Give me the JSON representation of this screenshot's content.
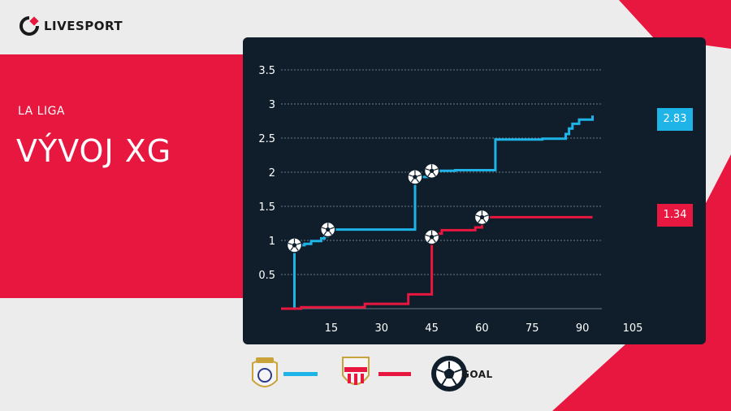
{
  "brand": {
    "name": "LIVESPORT"
  },
  "header": {
    "league": "LA LIGA",
    "title": "VÝVOJ XG"
  },
  "colors": {
    "home": "#1fb4e8",
    "away": "#e8173f",
    "panel": "#0f1e2a",
    "accent": "#e8173f"
  },
  "legend": {
    "goal_label": "GOAL",
    "home_icon": "real-madrid-crest-icon",
    "away_icon": "almeria-crest-icon",
    "goal_icon": "football-icon"
  },
  "chart_data": {
    "type": "line",
    "x_ticks": [
      "15",
      "30",
      "45",
      "60",
      "75",
      "90",
      "105"
    ],
    "y_ticks": [
      "0.5",
      "1",
      "1.5",
      "2",
      "2.5",
      "3",
      "3.5"
    ],
    "xlim": [
      0,
      105
    ],
    "ylim": [
      0,
      3.5
    ],
    "grid": true,
    "series": [
      {
        "team": "home",
        "final_label": "2.83",
        "points": [
          [
            0,
            0
          ],
          [
            4,
            0
          ],
          [
            4,
            0.93
          ],
          [
            7,
            0.93
          ],
          [
            7,
            0.95
          ],
          [
            9,
            0.95
          ],
          [
            9,
            0.99
          ],
          [
            12,
            0.99
          ],
          [
            12,
            1.03
          ],
          [
            13,
            1.03
          ],
          [
            13,
            1.06
          ],
          [
            14,
            1.06
          ],
          [
            14,
            1.16
          ],
          [
            40,
            1.16
          ],
          [
            40,
            1.93
          ],
          [
            45,
            1.93
          ],
          [
            45,
            2.02
          ],
          [
            52,
            2.02
          ],
          [
            52,
            2.03
          ],
          [
            64,
            2.03
          ],
          [
            64,
            2.48
          ],
          [
            78,
            2.48
          ],
          [
            78,
            2.49
          ],
          [
            85,
            2.49
          ],
          [
            85,
            2.56
          ],
          [
            86,
            2.56
          ],
          [
            86,
            2.64
          ],
          [
            87,
            2.64
          ],
          [
            87,
            2.71
          ],
          [
            89,
            2.71
          ],
          [
            89,
            2.77
          ],
          [
            93,
            2.77
          ],
          [
            93,
            2.83
          ]
        ],
        "goals": [
          [
            4,
            0.93
          ],
          [
            14,
            1.16
          ],
          [
            40,
            1.93
          ],
          [
            45,
            2.02
          ]
        ]
      },
      {
        "team": "away",
        "final_label": "1.34",
        "points": [
          [
            0,
            0
          ],
          [
            6,
            0
          ],
          [
            6,
            0.02
          ],
          [
            25,
            0.02
          ],
          [
            25,
            0.07
          ],
          [
            38,
            0.07
          ],
          [
            38,
            0.21
          ],
          [
            45,
            0.21
          ],
          [
            45,
            1.05
          ],
          [
            47,
            1.05
          ],
          [
            47,
            1.1
          ],
          [
            48,
            1.1
          ],
          [
            48,
            1.15
          ],
          [
            58,
            1.15
          ],
          [
            58,
            1.19
          ],
          [
            60,
            1.19
          ],
          [
            60,
            1.34
          ],
          [
            93,
            1.34
          ]
        ],
        "goals": [
          [
            45,
            1.05
          ],
          [
            60,
            1.34
          ]
        ]
      }
    ]
  }
}
